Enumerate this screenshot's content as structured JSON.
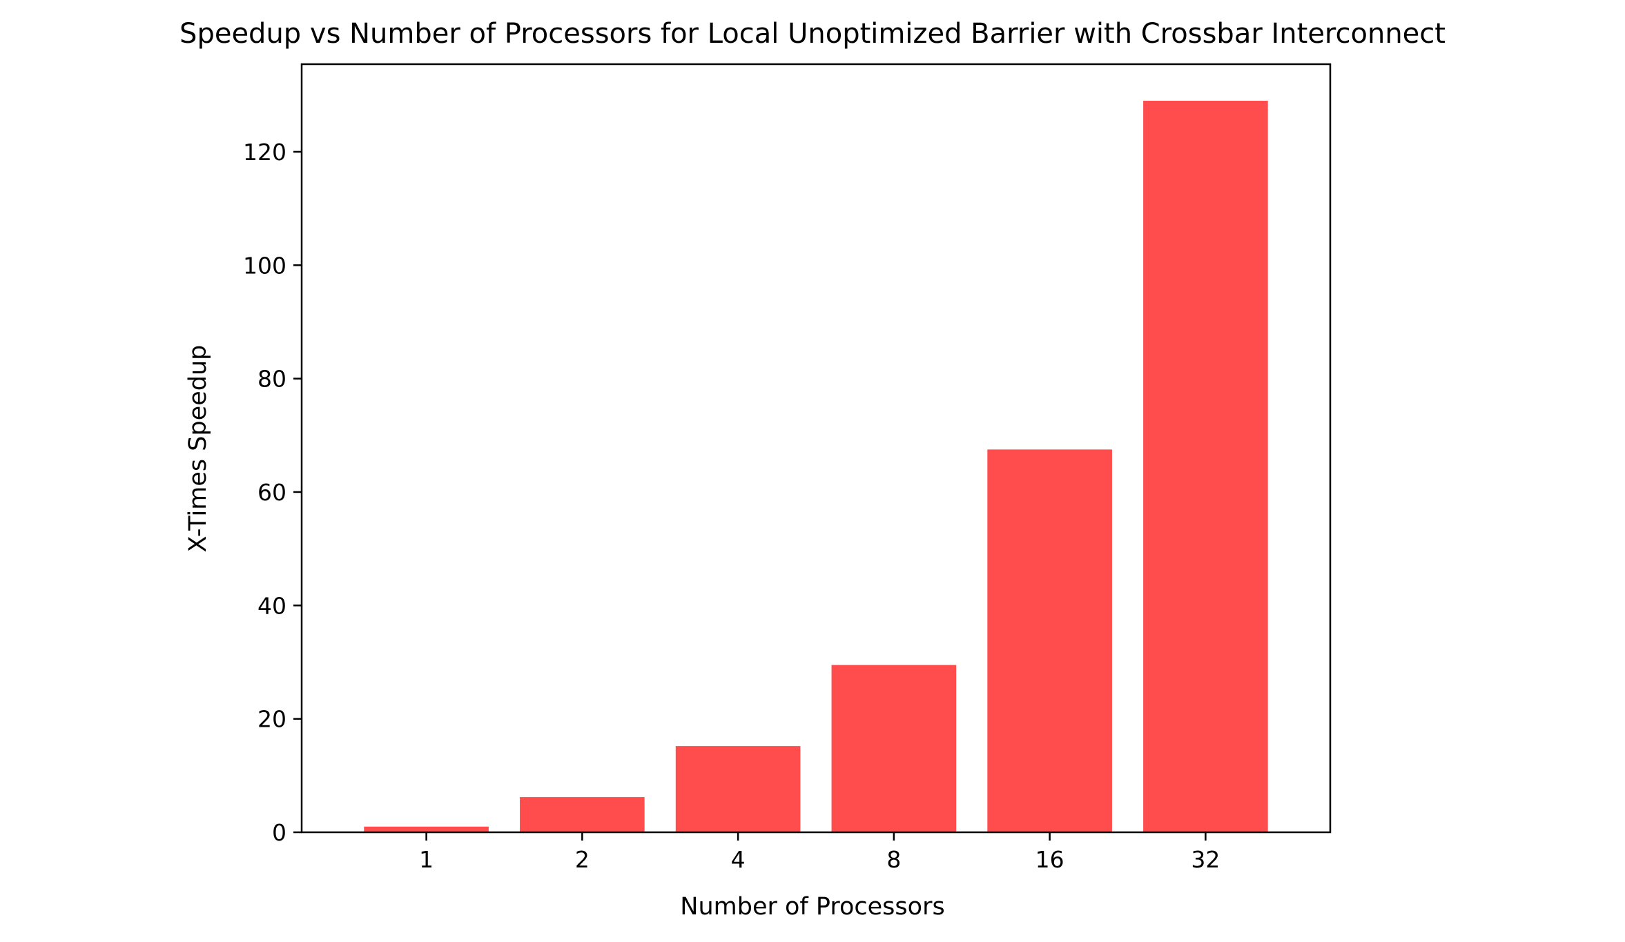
{
  "chart_data": {
    "type": "bar",
    "title": "Speedup vs Number of Processors for Local Unoptimized Barrier with Crossbar Interconnect",
    "xlabel": "Number of Processors",
    "ylabel": "X-Times Speedup",
    "categories": [
      "1",
      "2",
      "4",
      "8",
      "16",
      "32"
    ],
    "values": [
      1,
      6.2,
      15.2,
      29.5,
      67.5,
      129
    ],
    "ylim": [
      0,
      135.45
    ],
    "yticks": [
      0,
      20,
      40,
      60,
      80,
      100,
      120
    ],
    "grid": false,
    "legend": "none",
    "bar_color": "#ff4d4d",
    "axis_color": "#000000"
  }
}
